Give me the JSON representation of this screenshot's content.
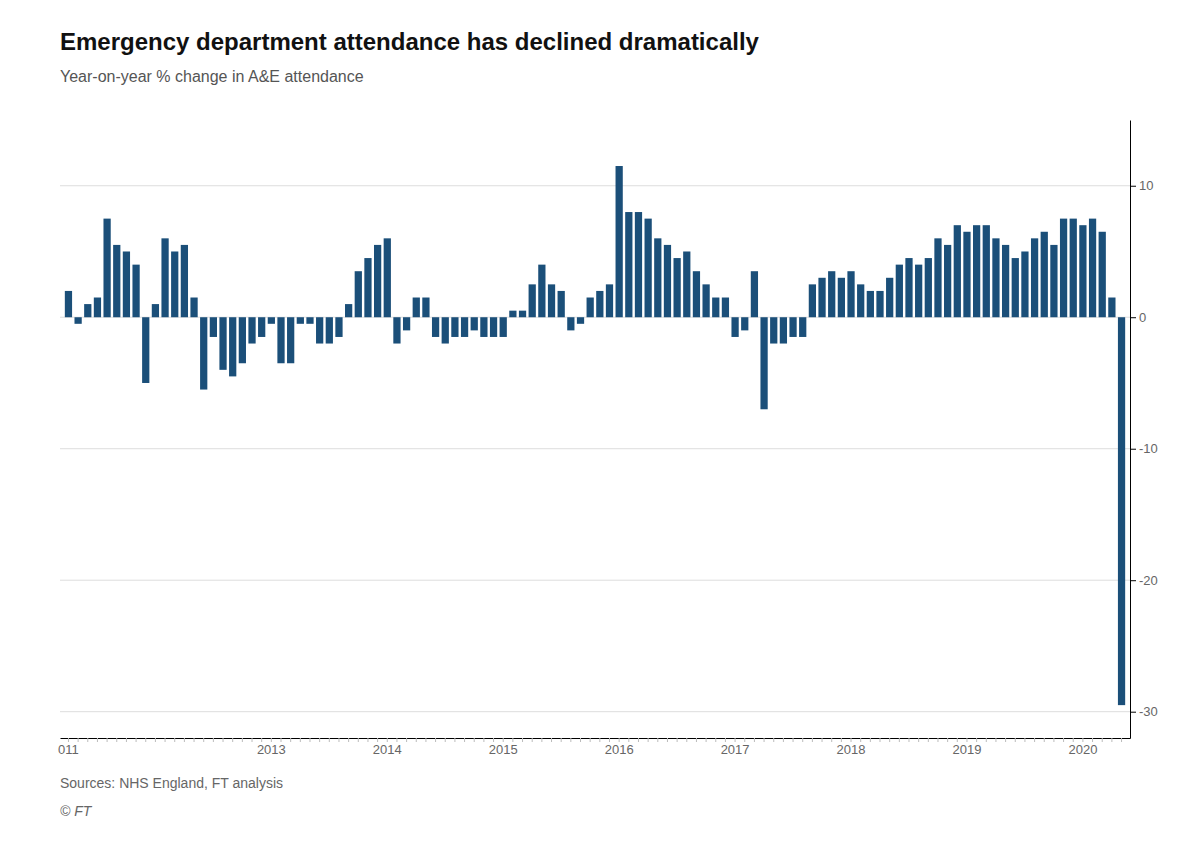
{
  "chart_data": {
    "type": "bar",
    "title": "Emergency department attendance has declined dramatically",
    "subtitle": "Year-on-year % change in A&E attendance",
    "annotations": [
      "Sources: NHS England, FT analysis",
      "© FT"
    ],
    "color": "#1b4f79",
    "ylim": [
      -32,
      15
    ],
    "yticks": [
      -30,
      -20,
      -10,
      0,
      10
    ],
    "grid": true,
    "categories": [
      "011",
      null,
      null,
      null,
      null,
      null,
      null,
      null,
      null,
      null,
      null,
      null,
      null,
      null,
      null,
      null,
      null,
      null,
      null,
      null,
      null,
      "2013",
      null,
      null,
      null,
      null,
      null,
      null,
      null,
      null,
      null,
      null,
      null,
      "2014",
      null,
      null,
      null,
      null,
      null,
      null,
      null,
      null,
      null,
      null,
      null,
      "2015",
      null,
      null,
      null,
      null,
      null,
      null,
      null,
      null,
      null,
      null,
      null,
      "2016",
      null,
      null,
      null,
      null,
      null,
      null,
      null,
      null,
      null,
      null,
      null,
      "2017",
      null,
      null,
      null,
      null,
      null,
      null,
      null,
      null,
      null,
      null,
      null,
      "2018",
      null,
      null,
      null,
      null,
      null,
      null,
      null,
      null,
      null,
      null,
      null,
      "2019",
      null,
      null,
      null,
      null,
      null,
      null,
      null,
      null,
      null,
      null,
      null,
      "2020",
      null,
      null,
      null,
      null
    ],
    "values": [
      2.0,
      -0.5,
      1.0,
      1.5,
      7.5,
      5.5,
      5.0,
      4.0,
      -5.0,
      1.0,
      6.0,
      5.0,
      5.5,
      1.5,
      -5.5,
      -1.5,
      -4.0,
      -4.5,
      -3.5,
      -2.0,
      -1.5,
      -0.5,
      -3.5,
      -3.5,
      -0.5,
      -0.5,
      -2.0,
      -2.0,
      -1.5,
      1.0,
      3.5,
      4.5,
      5.5,
      6.0,
      -2.0,
      -1.0,
      1.5,
      1.5,
      -1.5,
      -2.0,
      -1.5,
      -1.5,
      -1.0,
      -1.5,
      -1.5,
      -1.5,
      0.5,
      0.5,
      2.5,
      4.0,
      2.5,
      2.0,
      -1.0,
      -0.5,
      1.5,
      2.0,
      2.5,
      11.5,
      8.0,
      8.0,
      7.5,
      6.0,
      5.5,
      4.5,
      5.0,
      3.5,
      2.5,
      1.5,
      1.5,
      -1.5,
      -1.0,
      3.5,
      -7.0,
      -2.0,
      -2.0,
      -1.5,
      -1.5,
      2.5,
      3.0,
      3.5,
      3.0,
      3.5,
      2.5,
      2.0,
      2.0,
      3.0,
      4.0,
      4.5,
      4.0,
      4.5,
      6.0,
      5.5,
      7.0,
      6.5,
      7.0,
      7.0,
      6.0,
      5.5,
      4.5,
      5.0,
      6.0,
      6.5,
      5.5,
      7.5,
      7.5,
      7.0,
      7.5,
      6.5,
      1.5,
      -29.5
    ]
  }
}
